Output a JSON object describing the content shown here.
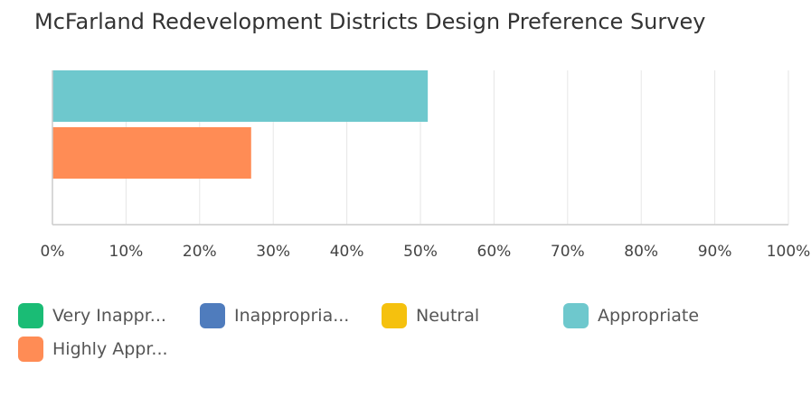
{
  "chart_data": {
    "type": "bar",
    "orientation": "horizontal",
    "title": "McFarland Redevelopment Districts Design Preference Survey",
    "xlabel": "",
    "ylabel": "",
    "xlim": [
      0,
      100
    ],
    "x_ticks": [
      "0%",
      "10%",
      "20%",
      "30%",
      "40%",
      "50%",
      "60%",
      "70%",
      "80%",
      "90%",
      "100%"
    ],
    "grid": true,
    "legend_position": "bottom",
    "series": [
      {
        "name": "Very Inappr...",
        "color": "#1abc75",
        "value": 0
      },
      {
        "name": "Inappropria...",
        "color": "#4f7cbd",
        "value": 0
      },
      {
        "name": "Neutral",
        "color": "#f5c10e",
        "value": 0
      },
      {
        "name": "Appropriate",
        "color": "#6ec8cd",
        "value": 51
      },
      {
        "name": "Highly Appr...",
        "color": "#ff8c55",
        "value": 27
      }
    ]
  }
}
